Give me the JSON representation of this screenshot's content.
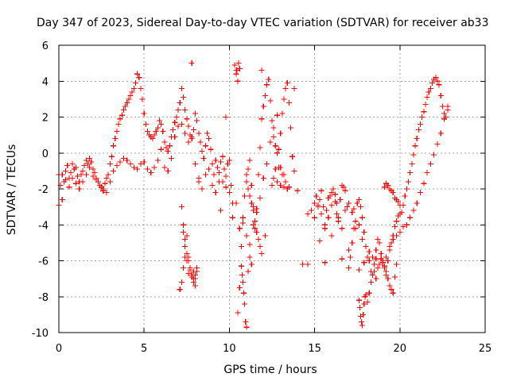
{
  "chart_data": {
    "type": "scatter",
    "title": "Day 347 of 2023, Sidereal Day-to-day VTEC variation (SDTVAR) for receiver ab33",
    "xlabel": "GPS time / hours",
    "ylabel": "SDTVAR / TECUs",
    "xlim": [
      0,
      25
    ],
    "ylim": [
      -10,
      6
    ],
    "xticks": [
      "0",
      "5",
      "10",
      "15",
      "20",
      "25"
    ],
    "yticks": [
      "-10",
      "-8",
      "-6",
      "-4",
      "-2",
      "0",
      "2",
      "4",
      "6"
    ],
    "grid": true,
    "marker": "plus",
    "marker_color": "#ff0000",
    "series": [
      {
        "name": "SDTVAR",
        "x": [
          0.0,
          0.1,
          0.2,
          0.3,
          0.4,
          0.5,
          0.6,
          0.7,
          0.8,
          0.9,
          1.0,
          1.1,
          1.2,
          1.3,
          1.4,
          1.5,
          1.6,
          1.7,
          1.8,
          1.9,
          2.0,
          2.1,
          2.2,
          2.3,
          2.4,
          2.5,
          2.6,
          2.7,
          2.8,
          2.9,
          3.0,
          3.1,
          3.2,
          3.3,
          3.4,
          3.5,
          3.6,
          3.7,
          3.8,
          3.9,
          4.0,
          4.1,
          4.2,
          4.3,
          4.4,
          4.5,
          4.6,
          4.7,
          4.8,
          4.9,
          5.0,
          5.1,
          5.2,
          5.3,
          5.4,
          5.5,
          5.6,
          5.7,
          5.8,
          5.9,
          6.0,
          6.1,
          6.2,
          6.3,
          6.4,
          6.5,
          6.6,
          6.7,
          6.8,
          6.9,
          7.0,
          7.1,
          7.2,
          7.3,
          7.4,
          7.5,
          7.6,
          7.7,
          7.8,
          7.9,
          8.0,
          8.1,
          8.2,
          8.3,
          8.4,
          8.5,
          8.6,
          8.7,
          8.8,
          8.9,
          9.0,
          9.1,
          9.2,
          9.3,
          9.4,
          9.5,
          9.6,
          9.7,
          9.8,
          9.9,
          10.0,
          10.1,
          10.2,
          10.3,
          10.4,
          10.5,
          10.6,
          10.7,
          10.8,
          10.9,
          11.0,
          11.1,
          11.2,
          11.3,
          11.4,
          11.5,
          11.6,
          11.7,
          11.8,
          11.9,
          12.0,
          12.1,
          12.2,
          12.3,
          12.4,
          12.5,
          12.6,
          12.7,
          12.8,
          12.9,
          13.0,
          13.1,
          13.2,
          13.3,
          13.4,
          13.5,
          13.6,
          13.7,
          13.8,
          14.6,
          14.8,
          15.0,
          15.1,
          15.2,
          15.3,
          15.4,
          15.5,
          15.6,
          15.7,
          15.8,
          15.9,
          16.0,
          16.1,
          16.2,
          16.3,
          16.4,
          16.5,
          16.6,
          16.7,
          16.8,
          16.9,
          17.0,
          17.1,
          17.2,
          17.3,
          17.4,
          17.5,
          17.6,
          17.7,
          17.8,
          17.9,
          18.0,
          18.1,
          18.2,
          18.3,
          18.4,
          18.5,
          18.6,
          18.7,
          18.8,
          18.9,
          19.0,
          19.1,
          19.2,
          19.3,
          19.4,
          19.5,
          19.6,
          19.7,
          19.8,
          19.9,
          20.0,
          20.1,
          20.2,
          20.3,
          20.4,
          20.5,
          20.6,
          20.7,
          20.8,
          20.9,
          21.0,
          21.1,
          21.2,
          21.3,
          21.4,
          21.5,
          21.6,
          21.7,
          21.8,
          21.9,
          22.0,
          22.1,
          22.2,
          22.3,
          22.4,
          22.5,
          22.6,
          22.7,
          22.8,
          0.0,
          0.2,
          0.4,
          0.6,
          0.8,
          1.0,
          1.2,
          1.4,
          1.6,
          1.8,
          2.0,
          2.2,
          2.4,
          2.6,
          2.8,
          3.0,
          3.2,
          3.4,
          3.6,
          3.8,
          4.0,
          4.2,
          4.4,
          4.6,
          4.8,
          5.0,
          5.2,
          5.4,
          5.6,
          5.8,
          6.0,
          6.2,
          6.4,
          6.6,
          6.8,
          7.0,
          7.2,
          7.4,
          7.6,
          7.8,
          8.0,
          8.2,
          8.4,
          8.6,
          8.8,
          9.0,
          9.2,
          9.4,
          9.6,
          9.8,
          10.0,
          10.2,
          10.4,
          10.6,
          10.8,
          11.0,
          11.2,
          11.4,
          11.6,
          11.8,
          12.0,
          12.2,
          12.4,
          12.6,
          12.8,
          13.0,
          13.2,
          15.0,
          15.2,
          15.4,
          15.6,
          15.8,
          16.0,
          16.2,
          16.4,
          16.6,
          16.8,
          17.0,
          17.2,
          17.4,
          17.6,
          17.8,
          18.0,
          18.2,
          18.4,
          18.6,
          18.8,
          19.0,
          19.2,
          19.4,
          19.6,
          19.8,
          20.0,
          20.2,
          20.4,
          20.6,
          20.8,
          21.0,
          21.2,
          21.4,
          21.6,
          21.8,
          22.0,
          22.2,
          22.4,
          22.6,
          22.8,
          7.2,
          7.3,
          7.4,
          7.5,
          7.6,
          7.7,
          7.8,
          7.9,
          8.0,
          8.1,
          7.1,
          7.2,
          7.3,
          7.4,
          7.5,
          7.6,
          7.7,
          7.8,
          7.9,
          8.0,
          8.1,
          7.3,
          7.4,
          7.5,
          7.6,
          7.7,
          7.8,
          7.9,
          8.0,
          10.7,
          10.75,
          10.8,
          10.85,
          10.9,
          10.95,
          11.0,
          11.1,
          11.2,
          11.3,
          10.4,
          10.5,
          10.6,
          10.55,
          10.45,
          11.0,
          11.1,
          11.2,
          11.3,
          11.4,
          11.5,
          11.6,
          11.7,
          11.8,
          11.9,
          12.5,
          12.6,
          12.7,
          12.8,
          12.9,
          13.0,
          13.1,
          13.2,
          13.3,
          13.4,
          14.0,
          14.3,
          7.8,
          9.8,
          11.9,
          13.8,
          8.2,
          9.5,
          12.1,
          13.5,
          14.6,
          15.3,
          15.6,
          16.0,
          16.3,
          16.6,
          17.0,
          17.3,
          17.6,
          17.9,
          17.6,
          17.65,
          17.7,
          17.75,
          17.8,
          17.85,
          17.9,
          17.95,
          18.0,
          18.1,
          18.2,
          18.3,
          18.4,
          18.5,
          18.6,
          18.7,
          18.8,
          18.9,
          19.0,
          19.1,
          19.2,
          19.3,
          19.4,
          19.5,
          19.6,
          19.7,
          19.8,
          19.1,
          19.2,
          19.3,
          19.4,
          19.5,
          19.6,
          19.7,
          19.8,
          19.9,
          20.0
        ],
        "y": [
          -2.9,
          -1.8,
          -1.2,
          -1.6,
          -1.0,
          -0.7,
          -1.4,
          -1.1,
          -0.6,
          -0.9,
          -0.8,
          -1.3,
          -1.6,
          -1.2,
          -1.0,
          -0.7,
          -0.4,
          -0.6,
          -0.3,
          -0.5,
          -0.9,
          -1.1,
          -1.4,
          -1.6,
          -1.8,
          -1.9,
          -2.0,
          -1.7,
          -1.4,
          -1.2,
          -0.6,
          -0.2,
          0.4,
          0.8,
          1.2,
          1.6,
          1.9,
          2.1,
          2.4,
          2.6,
          2.8,
          3.0,
          3.2,
          3.4,
          3.6,
          3.9,
          4.4,
          4.2,
          3.6,
          3.0,
          2.2,
          1.6,
          1.2,
          1.0,
          0.9,
          0.8,
          1.0,
          1.2,
          1.4,
          1.8,
          1.6,
          1.2,
          0.6,
          0.3,
          0.1,
          0.4,
          0.9,
          1.3,
          1.7,
          2.0,
          2.4,
          2.8,
          3.6,
          3.1,
          2.4,
          1.9,
          1.5,
          1.0,
          0.8,
          1.3,
          2.2,
          1.8,
          1.1,
          0.6,
          0.1,
          -0.3,
          0.4,
          1.1,
          0.8,
          0.2,
          -0.6,
          -1.2,
          -0.4,
          -0.8,
          -1.6,
          -0.5,
          -0.2,
          -0.9,
          -1.3,
          -0.6,
          -0.4,
          -1.8,
          -2.8,
          4.9,
          4.6,
          -8.9,
          -7.5,
          -5.2,
          -3.6,
          -2.4,
          -1.6,
          -0.9,
          -0.4,
          -1.8,
          -3.0,
          -4.2,
          -3.1,
          -1.2,
          0.3,
          1.9,
          2.6,
          3.2,
          3.8,
          4.1,
          2.9,
          1.8,
          0.9,
          0.4,
          0.0,
          0.2,
          1.1,
          2.2,
          3.0,
          3.6,
          3.9,
          2.8,
          1.4,
          -0.2,
          -1.0,
          -6.2,
          -3.2,
          -3.6,
          -2.4,
          -3.0,
          -2.6,
          -2.1,
          -3.0,
          -4.0,
          -3.2,
          -2.5,
          -2.4,
          -2.2,
          -2.0,
          -2.3,
          -3.4,
          -3.8,
          -2.6,
          -1.8,
          -1.9,
          -2.1,
          -3.0,
          -5.4,
          -5.8,
          -5.0,
          -4.2,
          -3.8,
          -2.8,
          -2.6,
          -3.0,
          -3.6,
          -4.4,
          -5.2,
          -5.8,
          -6.0,
          -6.6,
          -6.8,
          -6.2,
          -5.4,
          -4.8,
          -5.0,
          -5.6,
          -6.0,
          -6.4,
          -6.8,
          -6.0,
          -5.4,
          -5.0,
          -4.6,
          -4.1,
          -3.8,
          -3.5,
          -3.4,
          -3.3,
          -2.9,
          -2.4,
          -2.0,
          -1.6,
          -1.1,
          -0.6,
          -0.1,
          0.4,
          0.8,
          1.3,
          1.6,
          2.0,
          2.3,
          2.7,
          3.1,
          3.4,
          3.6,
          3.9,
          4.1,
          4.2,
          4.0,
          3.8,
          3.2,
          2.6,
          2.2,
          2.0,
          2.4,
          -1.2,
          -2.6,
          -1.5,
          -1.9,
          -1.4,
          -1.7,
          -2.0,
          -1.6,
          -1.2,
          -0.8,
          -1.3,
          -1.5,
          -1.8,
          -2.1,
          -2.2,
          -1.6,
          -1.0,
          -0.7,
          -0.5,
          -0.3,
          -0.4,
          -0.6,
          -0.8,
          -0.9,
          -0.6,
          -0.5,
          -0.9,
          -1.1,
          -0.8,
          -0.4,
          0.2,
          -0.8,
          -1.0,
          -0.3,
          0.9,
          1.5,
          1.6,
          1.1,
          0.6,
          0.9,
          -0.6,
          -1.4,
          -2.0,
          -1.2,
          -0.9,
          -1.8,
          -2.2,
          -1.1,
          -1.6,
          -1.9,
          -2.2,
          -3.6,
          -2.8,
          -4.2,
          -3.9,
          -4.6,
          -5.1,
          -4.0,
          -3.3,
          -2.5,
          -1.4,
          -0.6,
          0.6,
          1.4,
          2.1,
          -0.8,
          -1.2,
          -2.8,
          -2.9,
          -3.4,
          -4.2,
          -3.6,
          -2.9,
          -2.7,
          -3.6,
          -4.2,
          -3.2,
          -2.8,
          -3.3,
          -4.2,
          -4.0,
          -4.8,
          -5.2,
          -5.5,
          -5.8,
          -5.9,
          -6.2,
          -6.1,
          -5.8,
          -5.2,
          -4.8,
          -4.6,
          -4.4,
          -4.1,
          -4.0,
          -3.6,
          -3.2,
          -2.8,
          -2.2,
          -1.7,
          -1.1,
          -0.6,
          -0.1,
          0.5,
          1.1,
          1.9,
          2.6,
          -3.0,
          -4.0,
          -5.2,
          -4.6,
          -5.8,
          -6.5,
          -6.9,
          -6.6,
          -7.0,
          -6.4,
          -7.6,
          -7.2,
          -6.4,
          -5.8,
          -6.0,
          -6.7,
          -6.5,
          -6.9,
          -7.2,
          -6.8,
          -6.6,
          -4.4,
          -4.8,
          -5.6,
          -6.0,
          -6.4,
          -6.8,
          -7.0,
          -7.4,
          -6.3,
          -6.8,
          -7.2,
          -7.8,
          -8.4,
          -9.4,
          -9.7,
          -6.6,
          -5.8,
          -6.2,
          4.4,
          4.0,
          4.7,
          5.0,
          4.6,
          -1.2,
          -2.0,
          -2.4,
          -2.8,
          -3.2,
          -3.8,
          -4.4,
          -4.8,
          -5.2,
          -5.6,
          -1.8,
          -1.4,
          -0.9,
          -1.6,
          -0.8,
          -1.8,
          -1.2,
          -1.9,
          -1.6,
          -2.0,
          -2.1,
          -6.2,
          5.0,
          2.0,
          4.6,
          3.6,
          -1.6,
          -3.2,
          -4.6,
          -1.9,
          -3.4,
          -4.9,
          -6.1,
          -4.6,
          -2.8,
          -5.9,
          -6.4,
          -3.1,
          -6.5,
          -6.1,
          -8.2,
          -8.6,
          -9.1,
          -9.4,
          -9.6,
          -9.0,
          -8.4,
          -8.0,
          -7.9,
          -8.3,
          -7.8,
          -7.2,
          -6.8,
          -6.6,
          -7.0,
          -6.4,
          -6.2,
          -5.9,
          -6.0,
          -6.3,
          -6.6,
          -7.0,
          -7.4,
          -7.6,
          -7.8,
          -6.9,
          -6.2,
          -1.9,
          -1.7,
          -1.8,
          -2.0,
          -2.1,
          -2.2,
          -2.5,
          -2.6,
          -2.7,
          -2.9
        ]
      }
    ]
  }
}
